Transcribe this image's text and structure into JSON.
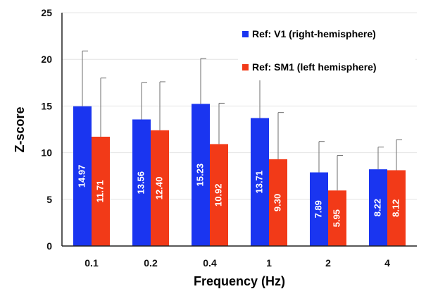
{
  "chart_data": {
    "type": "bar",
    "xlabel": "Frequency (Hz)",
    "ylabel": "Z-score",
    "ylim": [
      0,
      25
    ],
    "yticks": [
      0,
      5,
      10,
      15,
      20,
      25
    ],
    "categories": [
      "0.1",
      "0.2",
      "0.4",
      "1",
      "2",
      "4"
    ],
    "grid": true,
    "legend_position": "top-right",
    "series": [
      {
        "name": "Ref: V1 (right-hemisphere)",
        "color": "#1a35f0",
        "values": [
          14.97,
          13.56,
          15.23,
          13.71,
          7.89,
          8.22
        ],
        "labels": [
          "14.97",
          "13.56",
          "15.23",
          "13.71",
          "7.89",
          "8.22"
        ],
        "error_upper": [
          20.9,
          17.5,
          20.1,
          17.8,
          11.2,
          10.6
        ]
      },
      {
        "name": "Ref: SM1 (left hemisphere)",
        "color": "#f23a18",
        "values": [
          11.71,
          12.4,
          10.92,
          9.3,
          5.95,
          8.12
        ],
        "labels": [
          "11.71",
          "12.40",
          "10.92",
          "9.30",
          "5.95",
          "8.12"
        ],
        "error_upper": [
          18.0,
          17.6,
          15.3,
          14.3,
          9.7,
          11.4
        ]
      }
    ]
  }
}
